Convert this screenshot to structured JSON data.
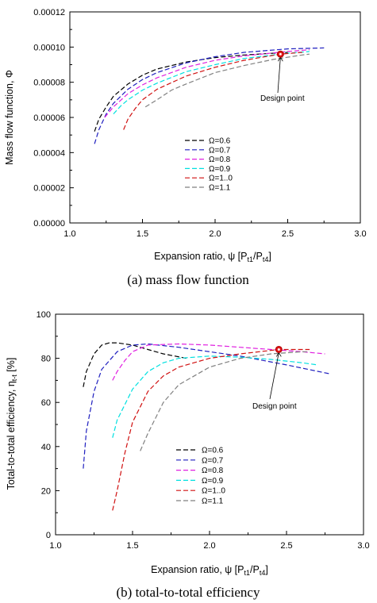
{
  "chart_data": [
    {
      "type": "line",
      "caption": "(a)  mass flow  function",
      "xlabel": "Expansion ratio, ψ [P",
      "xlabel_sub1": "t1",
      "xlabel_mid": "/P",
      "xlabel_sub2": "t4",
      "xlabel_end": "]",
      "ylabel": "Mass flow function, Φ",
      "xlim": [
        1.0,
        3.0
      ],
      "ylim": [
        0.0,
        0.00012
      ],
      "xticks": [
        "1.0",
        "1.5",
        "2.0",
        "2.5",
        "3.0"
      ],
      "yticks": [
        "0.00000",
        "0.00002",
        "0.00004",
        "0.00006",
        "0.00008",
        "0.00010",
        "0.00012"
      ],
      "legend_position": "lower-center",
      "series": [
        {
          "name": "Ω=0.6",
          "color": "#000000",
          "x": [
            1.17,
            1.2,
            1.25,
            1.3,
            1.4,
            1.5,
            1.6,
            1.8,
            2.0,
            2.2,
            2.4,
            2.5
          ],
          "y": [
            5.2e-05,
            5.9e-05,
            6.6e-05,
            7.2e-05,
            7.9e-05,
            8.4e-05,
            8.75e-05,
            9.15e-05,
            9.4e-05,
            9.55e-05,
            9.65e-05,
            9.7e-05
          ]
        },
        {
          "name": "Ω=0.7",
          "color": "#1f1fbf",
          "x": [
            1.17,
            1.2,
            1.25,
            1.3,
            1.4,
            1.5,
            1.6,
            1.8,
            2.0,
            2.2,
            2.5,
            2.75
          ],
          "y": [
            4.5e-05,
            5.3e-05,
            6.2e-05,
            6.8e-05,
            7.6e-05,
            8.15e-05,
            8.55e-05,
            9.1e-05,
            9.45e-05,
            9.7e-05,
            9.9e-05,
            9.95e-05
          ]
        },
        {
          "name": "Ω=0.8",
          "color": "#e020e0",
          "x": [
            1.24,
            1.3,
            1.4,
            1.5,
            1.6,
            1.8,
            2.0,
            2.2,
            2.5,
            2.65
          ],
          "y": [
            6e-05,
            6.6e-05,
            7.35e-05,
            7.85e-05,
            8.25e-05,
            8.85e-05,
            9.25e-05,
            9.5e-05,
            9.75e-05,
            9.85e-05
          ]
        },
        {
          "name": "Ω=0.9",
          "color": "#00e0e0",
          "x": [
            1.3,
            1.35,
            1.4,
            1.5,
            1.6,
            1.8,
            2.0,
            2.2,
            2.5,
            2.65
          ],
          "y": [
            6.2e-05,
            6.65e-05,
            7e-05,
            7.55e-05,
            7.95e-05,
            8.6e-05,
            9e-05,
            9.35e-05,
            9.65e-05,
            9.75e-05
          ]
        },
        {
          "name": "Ω=1..0",
          "color": "#d01010",
          "x": [
            1.37,
            1.4,
            1.45,
            1.5,
            1.6,
            1.8,
            2.0,
            2.2,
            2.45,
            2.6
          ],
          "y": [
            5.3e-05,
            5.9e-05,
            6.5e-05,
            7e-05,
            7.6e-05,
            8.35e-05,
            8.85e-05,
            9.25e-05,
            9.6e-05,
            9.7e-05
          ]
        },
        {
          "name": "Ω=1.1",
          "color": "#808080",
          "x": [
            1.52,
            1.6,
            1.7,
            1.8,
            2.0,
            2.2,
            2.4,
            2.6,
            2.65
          ],
          "y": [
            6.6e-05,
            7e-05,
            7.55e-05,
            7.9e-05,
            8.55e-05,
            8.95e-05,
            9.3e-05,
            9.55e-05,
            9.6e-05
          ]
        }
      ],
      "annotation": {
        "label": "Design point",
        "x": 2.45,
        "y": 9.6e-05
      }
    },
    {
      "type": "line",
      "caption": "(b)  total-to-total  efficiency",
      "xlabel": "Expansion ratio, ψ [P",
      "xlabel_sub1": "t1",
      "xlabel_mid": "/P",
      "xlabel_sub2": "t4",
      "xlabel_end": "]",
      "ylabel": "Total-to-total efficiency, η",
      "ylabel_sub": "t-t",
      "ylabel_end": " [%]",
      "xlim": [
        1.0,
        3.0
      ],
      "ylim": [
        0,
        100
      ],
      "xticks": [
        "1.0",
        "1.5",
        "2.0",
        "2.5",
        "3.0"
      ],
      "yticks": [
        "0",
        "20",
        "40",
        "60",
        "80",
        "100"
      ],
      "legend_position": "lower-center",
      "series": [
        {
          "name": "Ω=0.6",
          "color": "#000000",
          "x": [
            1.18,
            1.2,
            1.25,
            1.3,
            1.35,
            1.4,
            1.5,
            1.6,
            1.7,
            1.85
          ],
          "y": [
            67,
            74,
            82,
            86,
            87,
            87,
            86,
            84,
            82,
            80
          ]
        },
        {
          "name": "Ω=0.7",
          "color": "#1f1fbf",
          "x": [
            1.18,
            1.2,
            1.25,
            1.3,
            1.4,
            1.5,
            1.6,
            1.8,
            2.0,
            2.2,
            2.5,
            2.78
          ],
          "y": [
            30,
            47,
            65,
            75,
            83,
            86,
            86.5,
            85,
            83,
            81,
            77,
            73
          ]
        },
        {
          "name": "Ω=0.8",
          "color": "#e020e0",
          "x": [
            1.37,
            1.4,
            1.45,
            1.5,
            1.6,
            1.8,
            2.0,
            2.2,
            2.4,
            2.6,
            2.75
          ],
          "y": [
            70,
            74,
            79,
            83,
            86,
            86.5,
            86,
            85,
            84,
            83,
            82
          ]
        },
        {
          "name": "Ω=0.9",
          "color": "#00e0e0",
          "x": [
            1.37,
            1.4,
            1.5,
            1.6,
            1.7,
            1.8,
            2.0,
            2.2,
            2.4,
            2.6,
            2.7
          ],
          "y": [
            44,
            52,
            66,
            74,
            78,
            80,
            81,
            80.5,
            79.5,
            78,
            77
          ]
        },
        {
          "name": "Ω=1..0",
          "color": "#d01010",
          "x": [
            1.37,
            1.4,
            1.45,
            1.5,
            1.6,
            1.7,
            1.8,
            2.0,
            2.2,
            2.45,
            2.65
          ],
          "y": [
            11,
            20,
            37,
            51,
            65,
            72,
            76,
            80,
            82,
            84,
            84
          ]
        },
        {
          "name": "Ω=1.1",
          "color": "#808080",
          "x": [
            1.55,
            1.6,
            1.7,
            1.8,
            2.0,
            2.2,
            2.4,
            2.6,
            2.65
          ],
          "y": [
            38,
            46,
            60,
            68,
            76,
            80,
            82,
            83,
            83
          ]
        }
      ],
      "annotation": {
        "label": "Design point",
        "x": 2.45,
        "y": 84
      }
    }
  ]
}
